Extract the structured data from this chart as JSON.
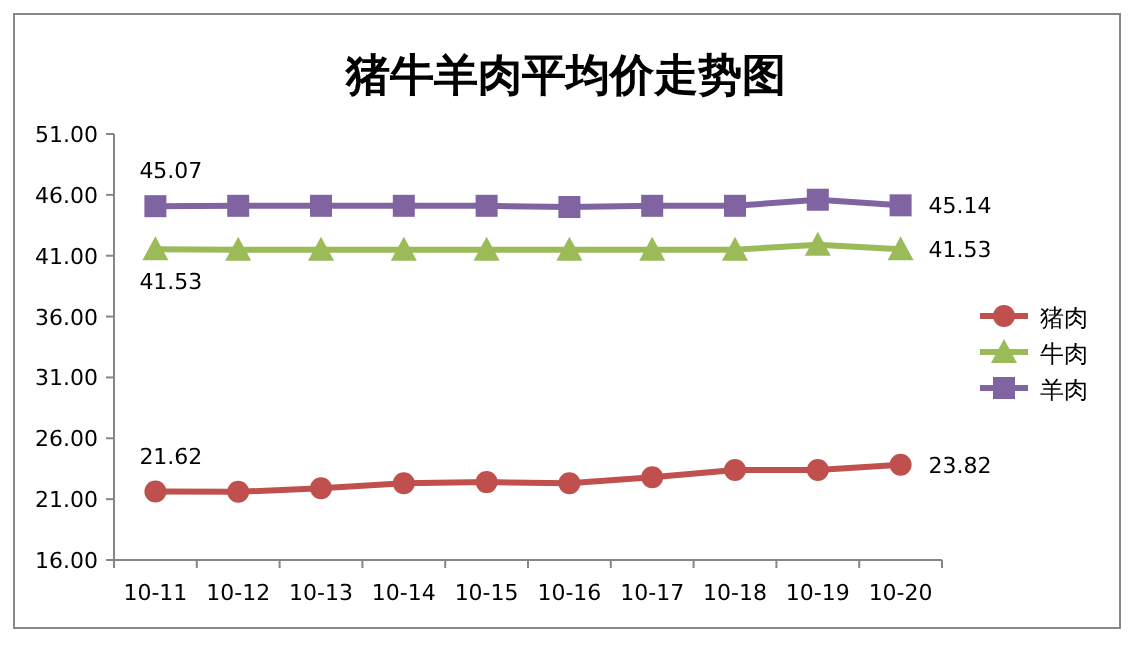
{
  "chart_data": {
    "type": "line",
    "title": "猪牛羊肉平均价走势图",
    "categories": [
      "10-11",
      "10-12",
      "10-13",
      "10-14",
      "10-15",
      "10-16",
      "10-17",
      "10-18",
      "10-19",
      "10-20"
    ],
    "series": [
      {
        "name": "猪肉",
        "color": "#c0504d",
        "marker": "circle",
        "values": [
          21.62,
          21.6,
          21.9,
          22.3,
          22.4,
          22.3,
          22.8,
          23.4,
          23.4,
          23.82
        ],
        "value_labels": [
          "21.62",
          null,
          null,
          null,
          null,
          null,
          null,
          null,
          null,
          "23.82"
        ]
      },
      {
        "name": "牛肉",
        "color": "#9bbb59",
        "marker": "triangle",
        "values": [
          41.53,
          41.5,
          41.5,
          41.5,
          41.5,
          41.5,
          41.5,
          41.5,
          41.9,
          41.53
        ],
        "value_labels": [
          "41.53",
          null,
          null,
          null,
          null,
          null,
          null,
          null,
          null,
          "41.53"
        ]
      },
      {
        "name": "羊肉",
        "color": "#8064a2",
        "marker": "square",
        "values": [
          45.07,
          45.1,
          45.1,
          45.1,
          45.1,
          45.0,
          45.1,
          45.1,
          45.6,
          45.14
        ],
        "value_labels": [
          "45.07",
          null,
          null,
          null,
          null,
          null,
          null,
          null,
          null,
          "45.14"
        ]
      }
    ],
    "ylim": [
      16,
      51
    ],
    "yticks": [
      {
        "value": 16,
        "label": "16.00"
      },
      {
        "value": 21,
        "label": "21.00"
      },
      {
        "value": 26,
        "label": "26.00"
      },
      {
        "value": 31,
        "label": "31.00"
      },
      {
        "value": 36,
        "label": "36.00"
      },
      {
        "value": 41,
        "label": "41.00"
      },
      {
        "value": 46,
        "label": "46.00"
      },
      {
        "value": 51,
        "label": "51.00"
      }
    ],
    "grid": false,
    "legend": "right"
  }
}
